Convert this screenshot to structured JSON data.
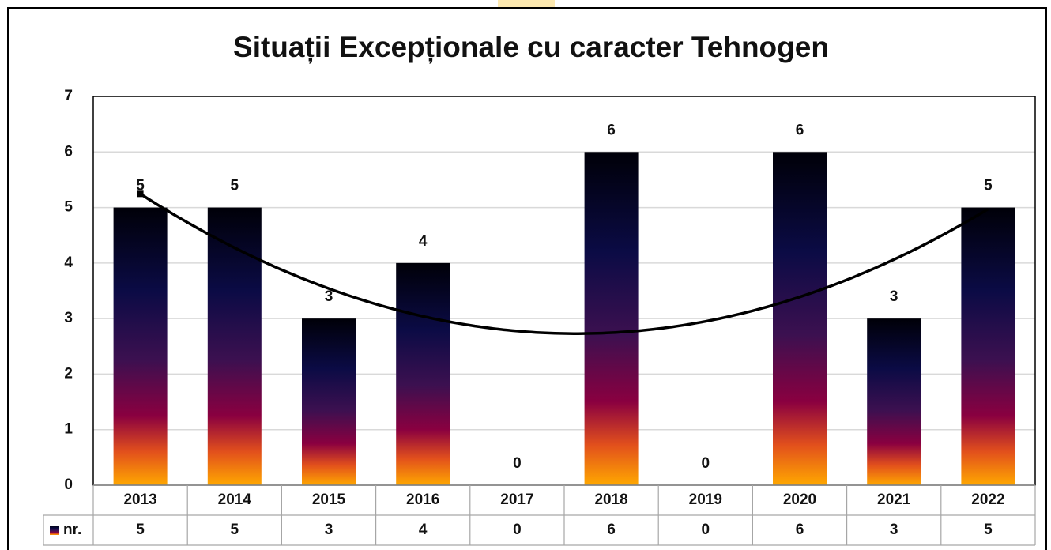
{
  "chart_data": {
    "type": "bar",
    "title": "Situații Excepționale cu caracter Tehnogen",
    "categories": [
      "2013",
      "2014",
      "2015",
      "2016",
      "2017",
      "2018",
      "2019",
      "2020",
      "2021",
      "2022"
    ],
    "series": [
      {
        "name": "nr.",
        "colors": [
          "#000008",
          "#0b0b45",
          "#3c1050",
          "#8a0040",
          "#e2501c",
          "#ffa800"
        ],
        "values": [
          5,
          5,
          3,
          4,
          0,
          6,
          0,
          6,
          3,
          5
        ]
      }
    ],
    "ylim": [
      0,
      7
    ],
    "yticks": [
      0,
      1,
      2,
      3,
      4,
      5,
      6,
      7
    ],
    "grid": true,
    "trendline": {
      "order": 2,
      "color": "#000000"
    },
    "data_table": true
  }
}
